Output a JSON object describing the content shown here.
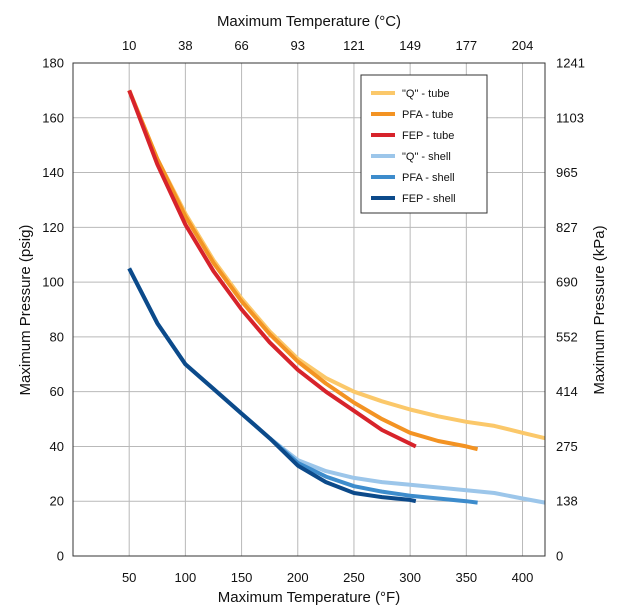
{
  "chart_data": {
    "type": "line",
    "title": "",
    "xlabel": "Maximum Temperature (°F)",
    "x2label": "Maximum Temperature (°C)",
    "ylabel": "Maximum Pressure (psig)",
    "y2label": "Maximum Pressure (kPa)",
    "xlim": [
      0,
      420
    ],
    "ylim": [
      0,
      180
    ],
    "x_ticks": [
      50,
      100,
      150,
      200,
      250,
      300,
      350,
      400
    ],
    "x_tick_labels": [
      "50",
      "100",
      "150",
      "200",
      "250",
      "300",
      "350",
      "400"
    ],
    "x2_ticks": [
      50,
      100,
      150,
      200,
      250,
      300,
      350,
      400
    ],
    "x2_tick_labels": [
      "10",
      "38",
      "66",
      "93",
      "121",
      "149",
      "177",
      "204"
    ],
    "y_ticks": [
      0,
      20,
      40,
      60,
      80,
      100,
      120,
      140,
      160,
      180
    ],
    "y_tick_labels": [
      "0",
      "20",
      "40",
      "60",
      "80",
      "100",
      "120",
      "140",
      "160",
      "180"
    ],
    "y2_ticks": [
      0,
      20,
      40,
      60,
      80,
      100,
      120,
      140,
      160,
      180
    ],
    "y2_tick_labels": [
      "0",
      "138",
      "275",
      "414",
      "552",
      "690",
      "827",
      "965",
      "1103",
      "1241"
    ],
    "grid": true,
    "legend_position": "top-right",
    "series": [
      {
        "name": "\"Q\" - tube",
        "color": "#fbc86a",
        "x": [
          50,
          75,
          100,
          125,
          150,
          175,
          200,
          225,
          250,
          275,
          300,
          325,
          350,
          375,
          400,
          420
        ],
        "y": [
          170,
          145,
          125,
          108,
          94,
          82,
          72,
          65,
          60,
          56.5,
          53.5,
          51,
          49,
          47.5,
          45,
          43
        ]
      },
      {
        "name": "PFA - tube",
        "color": "#f39323",
        "x": [
          50,
          75,
          100,
          125,
          150,
          175,
          200,
          225,
          250,
          275,
          300,
          325,
          350,
          360
        ],
        "y": [
          170,
          145,
          124,
          107,
          93,
          81,
          71,
          63,
          56,
          50,
          45,
          42,
          40,
          39
        ]
      },
      {
        "name": "FEP - tube",
        "color": "#d7232b",
        "x": [
          50,
          75,
          100,
          125,
          150,
          175,
          200,
          225,
          250,
          275,
          300,
          305
        ],
        "y": [
          170,
          143,
          121,
          104,
          90,
          78,
          68,
          60,
          53,
          46,
          41,
          40
        ]
      },
      {
        "name": "\"Q\" - shell",
        "color": "#9cc6ea",
        "x": [
          50,
          75,
          100,
          125,
          150,
          175,
          200,
          225,
          250,
          275,
          300,
          325,
          350,
          375,
          400,
          420
        ],
        "y": [
          105,
          85,
          70,
          61,
          52,
          43,
          35,
          31,
          28.5,
          27,
          26,
          25,
          24,
          23,
          21,
          19.5
        ]
      },
      {
        "name": "PFA - shell",
        "color": "#3d8ccc",
        "x": [
          50,
          75,
          100,
          125,
          150,
          175,
          200,
          225,
          250,
          275,
          300,
          325,
          350,
          360
        ],
        "y": [
          105,
          85,
          70,
          61,
          52,
          43,
          34,
          29,
          25.5,
          23.5,
          22,
          21,
          20,
          19.5
        ]
      },
      {
        "name": "FEP - shell",
        "color": "#0c4a8a",
        "x": [
          50,
          75,
          100,
          125,
          150,
          175,
          200,
          225,
          250,
          275,
          300,
          305
        ],
        "y": [
          105,
          85,
          70,
          61,
          52,
          43,
          33,
          27,
          23,
          21.5,
          20.5,
          20
        ]
      }
    ]
  }
}
